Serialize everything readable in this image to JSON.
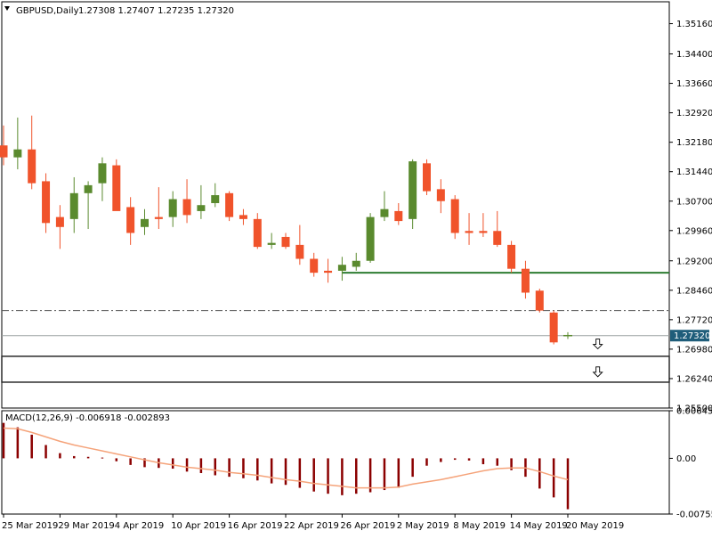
{
  "header": {
    "symbol_label": "GBPUSD,Daily",
    "ohlc_values": "1.27308 1.27407 1.27235 1.27320"
  },
  "colors": {
    "up": "#5a8a2e",
    "down": "#f0532b",
    "macd_bar": "#8b0000",
    "signal": "#f5a37a",
    "hline_support": "#2e7d32",
    "price_line": "#9aa0a0",
    "price_tag_bg": "#1f5d7a"
  },
  "chart_data": [
    {
      "type": "candlestick",
      "title": "GBPUSD,Daily",
      "price_axis_ticks": [
        "1.35160",
        "1.34400",
        "1.33660",
        "1.32920",
        "1.32180",
        "1.31440",
        "1.30700",
        "1.29960",
        "1.29200",
        "1.28460",
        "1.27720",
        "1.26980",
        "1.26240",
        "1.25500"
      ],
      "ylim": [
        1.255,
        1.3571
      ],
      "current_price": "1.27320",
      "x_axis_labels": [
        "25 Mar 2019",
        "29 Mar 2019",
        "4 Apr 2019",
        "10 Apr 2019",
        "16 Apr 2019",
        "22 Apr 2019",
        "26 Apr 2019",
        "2 May 2019",
        "8 May 2019",
        "14 May 2019",
        "20 May 2019"
      ],
      "candles": [
        {
          "o": 1.321,
          "h": 1.326,
          "l": 1.316,
          "c": 1.318
        },
        {
          "o": 1.318,
          "h": 1.328,
          "l": 1.315,
          "c": 1.32
        },
        {
          "o": 1.32,
          "h": 1.3285,
          "l": 1.31,
          "c": 1.3115
        },
        {
          "o": 1.312,
          "h": 1.314,
          "l": 1.299,
          "c": 1.3015
        },
        {
          "o": 1.303,
          "h": 1.306,
          "l": 1.295,
          "c": 1.3005
        },
        {
          "o": 1.3025,
          "h": 1.313,
          "l": 1.299,
          "c": 1.309
        },
        {
          "o": 1.309,
          "h": 1.312,
          "l": 1.3,
          "c": 1.311
        },
        {
          "o": 1.3115,
          "h": 1.318,
          "l": 1.307,
          "c": 1.3165
        },
        {
          "o": 1.316,
          "h": 1.3175,
          "l": 1.305,
          "c": 1.3045
        },
        {
          "o": 1.3055,
          "h": 1.308,
          "l": 1.296,
          "c": 1.299
        },
        {
          "o": 1.3005,
          "h": 1.305,
          "l": 1.2985,
          "c": 1.3025
        },
        {
          "o": 1.303,
          "h": 1.3105,
          "l": 1.3,
          "c": 1.3025
        },
        {
          "o": 1.303,
          "h": 1.3095,
          "l": 1.3005,
          "c": 1.3075
        },
        {
          "o": 1.3075,
          "h": 1.3125,
          "l": 1.3015,
          "c": 1.3035
        },
        {
          "o": 1.3045,
          "h": 1.311,
          "l": 1.3025,
          "c": 1.306
        },
        {
          "o": 1.3065,
          "h": 1.3115,
          "l": 1.3055,
          "c": 1.3085
        },
        {
          "o": 1.309,
          "h": 1.3095,
          "l": 1.302,
          "c": 1.303
        },
        {
          "o": 1.3035,
          "h": 1.305,
          "l": 1.301,
          "c": 1.3025
        },
        {
          "o": 1.3025,
          "h": 1.304,
          "l": 1.295,
          "c": 1.2955
        },
        {
          "o": 1.296,
          "h": 1.299,
          "l": 1.295,
          "c": 1.2965
        },
        {
          "o": 1.298,
          "h": 1.299,
          "l": 1.295,
          "c": 1.2955
        },
        {
          "o": 1.296,
          "h": 1.301,
          "l": 1.291,
          "c": 1.2925
        },
        {
          "o": 1.2925,
          "h": 1.294,
          "l": 1.288,
          "c": 1.289
        },
        {
          "o": 1.2895,
          "h": 1.2925,
          "l": 1.2865,
          "c": 1.289
        },
        {
          "o": 1.2895,
          "h": 1.293,
          "l": 1.287,
          "c": 1.291
        },
        {
          "o": 1.2905,
          "h": 1.294,
          "l": 1.2895,
          "c": 1.292
        },
        {
          "o": 1.292,
          "h": 1.304,
          "l": 1.2915,
          "c": 1.303
        },
        {
          "o": 1.303,
          "h": 1.3095,
          "l": 1.302,
          "c": 1.305
        },
        {
          "o": 1.3045,
          "h": 1.3065,
          "l": 1.301,
          "c": 1.302
        },
        {
          "o": 1.3025,
          "h": 1.3175,
          "l": 1.3,
          "c": 1.317
        },
        {
          "o": 1.3165,
          "h": 1.3175,
          "l": 1.3085,
          "c": 1.3095
        },
        {
          "o": 1.31,
          "h": 1.3125,
          "l": 1.304,
          "c": 1.307
        },
        {
          "o": 1.3075,
          "h": 1.3085,
          "l": 1.2975,
          "c": 1.299
        },
        {
          "o": 1.2995,
          "h": 1.304,
          "l": 1.296,
          "c": 1.299
        },
        {
          "o": 1.2995,
          "h": 1.304,
          "l": 1.298,
          "c": 1.299
        },
        {
          "o": 1.2995,
          "h": 1.3045,
          "l": 1.2955,
          "c": 1.296
        },
        {
          "o": 1.296,
          "h": 1.297,
          "l": 1.289,
          "c": 1.29
        },
        {
          "o": 1.29,
          "h": 1.292,
          "l": 1.2825,
          "c": 1.284
        },
        {
          "o": 1.2845,
          "h": 1.285,
          "l": 1.279,
          "c": 1.2795
        },
        {
          "o": 1.279,
          "h": 1.2795,
          "l": 1.271,
          "c": 1.2715
        },
        {
          "o": 1.27308,
          "h": 1.27407,
          "l": 1.27235,
          "c": 1.2732
        }
      ],
      "horizontal_lines": [
        {
          "name": "support-line",
          "value": 1.289,
          "style": "solid",
          "start_index": 24
        },
        {
          "name": "dashdot-line",
          "value": 1.2795,
          "style": "dashdot"
        },
        {
          "name": "price-line",
          "value": 1.2732,
          "style": "solid-thin"
        }
      ],
      "arrows": [
        {
          "name": "down-arrow-1",
          "value": 1.271,
          "index": 42
        },
        {
          "name": "down-arrow-2",
          "value": 1.264,
          "index": 42
        }
      ],
      "price_boxes": [
        {
          "top": 1.268,
          "bottom": 1.2615
        }
      ]
    },
    {
      "type": "bar",
      "title": "MACD(12,26,9) -0.006918 -0.002893",
      "indicator_label": "MACD(12,26,9) -0.006918 -0.002893",
      "axis_ticks": [
        "0.00645",
        "0.00",
        "-0.007554"
      ],
      "ylim": [
        -0.007554,
        0.00645
      ],
      "histogram": [
        0.0048,
        0.0042,
        0.0032,
        0.0018,
        0.0007,
        0.0003,
        0.0002,
        0.0001,
        -0.0004,
        -0.0009,
        -0.0012,
        -0.0013,
        -0.0014,
        -0.0018,
        -0.002,
        -0.0023,
        -0.0025,
        -0.0027,
        -0.003,
        -0.0034,
        -0.0036,
        -0.004,
        -0.0045,
        -0.0048,
        -0.005,
        -0.0048,
        -0.0046,
        -0.0043,
        -0.004,
        -0.0025,
        -0.001,
        -0.0005,
        -0.0002,
        -0.0003,
        -0.0008,
        -0.001,
        -0.0016,
        -0.0025,
        -0.0041,
        -0.0053,
        -0.0069
      ],
      "signal": [
        0.0041,
        0.004,
        0.0035,
        0.0029,
        0.0023,
        0.0018,
        0.0014,
        0.001,
        0.0006,
        0.0002,
        -0.0002,
        -0.0006,
        -0.0009,
        -0.0012,
        -0.0014,
        -0.0016,
        -0.0019,
        -0.0021,
        -0.0023,
        -0.0026,
        -0.0029,
        -0.0031,
        -0.0034,
        -0.0036,
        -0.0038,
        -0.004,
        -0.004,
        -0.004,
        -0.0039,
        -0.0035,
        -0.0032,
        -0.0029,
        -0.0025,
        -0.0021,
        -0.0017,
        -0.0014,
        -0.0013,
        -0.0013,
        -0.0018,
        -0.0024,
        -0.0029
      ]
    }
  ]
}
